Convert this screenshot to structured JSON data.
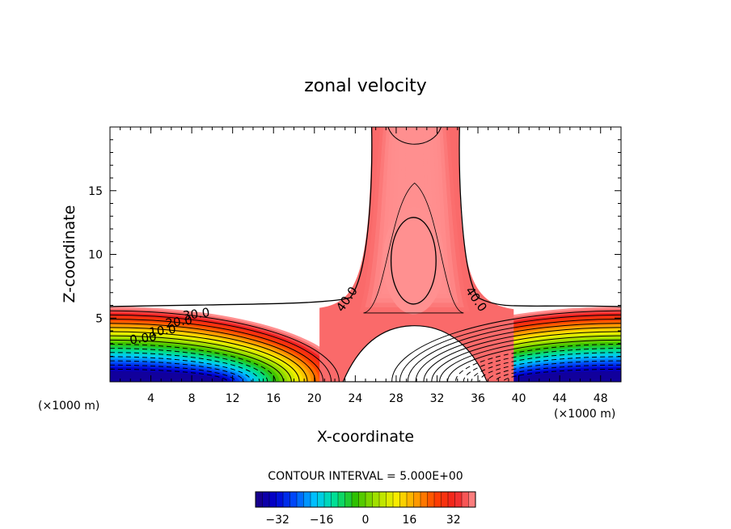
{
  "chart_data": {
    "type": "contour",
    "title": "zonal velocity",
    "xlabel": "X-coordinate",
    "ylabel": "Z-coordinate",
    "x_unit_left": "(×1000 m)",
    "x_unit_right": "(×1000 m)",
    "xlim": [
      0,
      50
    ],
    "ylim": [
      0,
      20
    ],
    "x_ticks": [
      4,
      8,
      12,
      16,
      20,
      24,
      28,
      32,
      36,
      40,
      44,
      48
    ],
    "y_ticks": [
      5,
      10,
      15
    ],
    "contour_interval_text": "CONTOUR INTERVAL = 5.000E+00",
    "contour_interval": 5.0,
    "contour_labels": [
      {
        "text": "30.0",
        "x": 8.5,
        "z": 5.0
      },
      {
        "text": "20.0",
        "x": 6.8,
        "z": 4.4
      },
      {
        "text": "10.0",
        "x": 5.2,
        "z": 3.7
      },
      {
        "text": "0.00",
        "x": 3.3,
        "z": 3.1
      },
      {
        "text": "40.0",
        "x": 23.5,
        "z": 6.3
      },
      {
        "text": "40.0",
        "x": 35.5,
        "z": 6.3
      }
    ],
    "colorbar": {
      "range": [
        -40,
        40
      ],
      "tick_values": [
        -32,
        -16,
        0,
        16,
        32
      ],
      "tick_labels": [
        "−32",
        "−16",
        "0",
        "16",
        "32"
      ]
    },
    "grid": false,
    "colors": {
      "background": "#ffffff",
      "colormap": [
        "#1a0080",
        "#0000d0",
        "#0050ff",
        "#00c8ff",
        "#00e090",
        "#30c000",
        "#a0e000",
        "#f8f000",
        "#ffa000",
        "#ff4000",
        "#f02020",
        "#ff9090"
      ]
    }
  }
}
